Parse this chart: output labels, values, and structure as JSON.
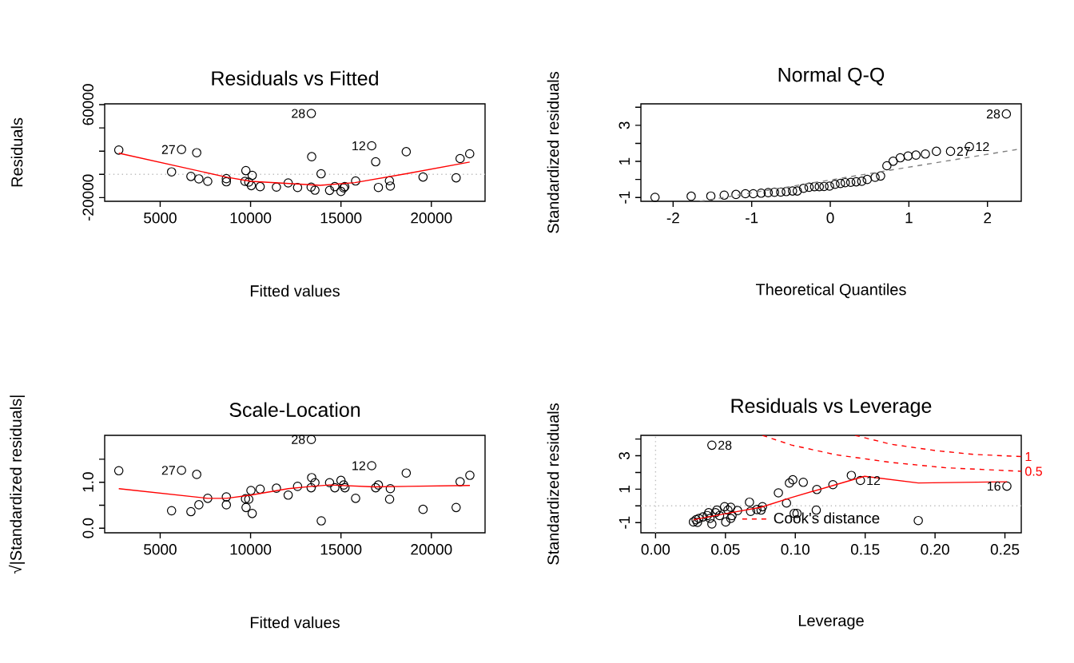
{
  "chart_data": [
    {
      "type": "scatter",
      "title": "Residuals vs Fitted",
      "xlabel": "Fitted values",
      "ylabel": "Residuals",
      "xlim": [
        1930,
        22970
      ],
      "ylim": [
        -23200,
        60700
      ],
      "xticks": [
        5000,
        10000,
        15000,
        20000
      ],
      "yticks": [
        -20000,
        {
          "value": 0,
          "label": null
        },
        {
          "value": 20000,
          "label": null
        },
        {
          "value": 40000,
          "label": null
        },
        60000
      ],
      "series": [
        {
          "color": "#000000",
          "marker": "circle",
          "x": [
            2710,
            6180,
            7020,
            5630,
            6700,
            7140,
            7630,
            8660,
            8660,
            9740,
            10090,
            9690,
            9900,
            10040,
            10530,
            11430,
            12080,
            12600,
            13380,
            13350,
            13560,
            13900,
            14370,
            14660,
            15000,
            15150,
            15210,
            15810,
            16700,
            16920,
            17070,
            17680,
            17730,
            18610,
            19540,
            21370,
            21590,
            22120,
            13360
          ],
          "values": [
            20900,
            21400,
            18600,
            2100,
            -1800,
            -3900,
            -6000,
            -3700,
            -6400,
            3200,
            -900,
            -6000,
            -6700,
            -9700,
            -10600,
            -11000,
            -7400,
            -11300,
            15200,
            -11000,
            -13600,
            500,
            -13800,
            -10600,
            -14700,
            -11700,
            -10600,
            -5700,
            24600,
            10800,
            -11300,
            -5500,
            -10100,
            19500,
            -2300,
            -3000,
            13600,
            17700,
            52400
          ]
        },
        {
          "type": "line",
          "color": "#ff0000",
          "x": [
            2710,
            8700,
            10020,
            13850,
            15770,
            18600,
            22120
          ],
          "values": [
            18200,
            -2500,
            -6000,
            -9400,
            -7100,
            500,
            10600
          ]
        }
      ],
      "ref_lines": [
        {
          "axis": "y",
          "value": 0,
          "color": "#bebebe",
          "line_style": "dotted"
        }
      ],
      "annotations": [
        {
          "text": "28",
          "x": 13360,
          "y": 52400
        },
        {
          "text": "27",
          "x": 6180,
          "y": 21400
        },
        {
          "text": "12",
          "x": 16700,
          "y": 24600
        }
      ]
    },
    {
      "type": "scatter",
      "title": "Normal Q-Q",
      "xlabel": "Theoretical Quantiles",
      "ylabel": "Standardized residuals",
      "xlim": [
        -2.41,
        2.43
      ],
      "ylim": [
        -1.21,
        4.19
      ],
      "xticks": [
        -2,
        -1,
        0,
        1,
        2
      ],
      "yticks": [
        -1,
        {
          "value": 0,
          "label": null
        },
        1,
        {
          "value": 2,
          "label": null
        },
        3,
        {
          "value": 4,
          "label": null
        }
      ],
      "series": [
        {
          "color": "#000000",
          "marker": "circle",
          "x": [
            -2.23,
            -1.77,
            -1.52,
            -1.35,
            -1.2,
            -1.08,
            -0.98,
            -0.88,
            -0.79,
            -0.71,
            -0.63,
            -0.56,
            -0.48,
            -0.42,
            -0.34,
            -0.27,
            -0.2,
            -0.14,
            -0.08,
            -0.01,
            0.06,
            0.13,
            0.19,
            0.26,
            0.33,
            0.4,
            0.47,
            0.57,
            0.64,
            0.72,
            0.8,
            0.89,
            0.99,
            1.09,
            1.21,
            1.35,
            1.53,
            1.77,
            2.24
          ],
          "values": [
            -0.99,
            -0.93,
            -0.92,
            -0.87,
            -0.83,
            -0.79,
            -0.79,
            -0.76,
            -0.73,
            -0.71,
            -0.7,
            -0.67,
            -0.64,
            -0.64,
            -0.49,
            -0.43,
            -0.4,
            -0.4,
            -0.39,
            -0.37,
            -0.27,
            -0.22,
            -0.18,
            -0.16,
            -0.13,
            -0.1,
            0.0,
            0.12,
            0.19,
            0.76,
            1.01,
            1.2,
            1.3,
            1.35,
            1.41,
            1.56,
            1.56,
            1.82,
            3.63
          ]
        },
        {
          "type": "line",
          "color": "#808080",
          "line_style": "dashed",
          "x": [
            -1.66,
            2.43
          ],
          "values": [
            -1.21,
            1.7
          ]
        }
      ],
      "annotations": [
        {
          "text": "28",
          "x": 2.24,
          "y": 3.63
        },
        {
          "text": "27",
          "x": 1.53,
          "y": 1.56
        },
        {
          "text": "12",
          "x": 1.77,
          "y": 1.82
        }
      ]
    },
    {
      "type": "scatter",
      "title": "Scale-Location",
      "xlabel": "Fitted values",
      "ylabel": "√|Standardized residuals|",
      "xlim": [
        1930,
        22970
      ],
      "ylim": [
        -0.1,
        2.02
      ],
      "xticks": [
        5000,
        10000,
        15000,
        20000
      ],
      "yticks": [
        {
          "value": 0,
          "label": "0.0"
        },
        {
          "value": 0.5,
          "label": null
        },
        {
          "value": 1,
          "label": "1.0"
        },
        {
          "value": 1.5,
          "label": null
        }
      ],
      "series": [
        {
          "color": "#000000",
          "marker": "circle",
          "x": [
            2710,
            6180,
            7020,
            5630,
            6700,
            7140,
            7630,
            8660,
            8660,
            9720,
            9900,
            9750,
            10090,
            10020,
            10530,
            11430,
            12080,
            12600,
            13380,
            13350,
            13560,
            13910,
            14370,
            14660,
            15000,
            15150,
            15220,
            15810,
            16700,
            16920,
            17070,
            17690,
            17730,
            18610,
            19540,
            21370,
            21590,
            22130,
            13360
          ],
          "values": [
            1.25,
            1.26,
            1.17,
            0.38,
            0.36,
            0.51,
            0.65,
            0.68,
            0.51,
            0.64,
            0.63,
            0.45,
            0.32,
            0.82,
            0.85,
            0.87,
            0.72,
            0.91,
            1.1,
            0.88,
            0.99,
            0.16,
            0.99,
            0.88,
            1.04,
            0.94,
            0.88,
            0.65,
            1.36,
            0.88,
            0.94,
            0.63,
            0.86,
            1.2,
            0.41,
            0.45,
            1.01,
            1.15,
            1.93
          ]
        },
        {
          "type": "line",
          "color": "#ff0000",
          "x": [
            2710,
            7630,
            8660,
            10020,
            12080,
            13380,
            14370,
            16840,
            22130
          ],
          "values": [
            0.86,
            0.65,
            0.65,
            0.72,
            0.86,
            0.91,
            0.94,
            0.9,
            0.93
          ]
        }
      ],
      "annotations": [
        {
          "text": "28",
          "x": 13360,
          "y": 1.93
        },
        {
          "text": "27",
          "x": 6180,
          "y": 1.26
        },
        {
          "text": "12",
          "x": 16700,
          "y": 1.36
        }
      ]
    },
    {
      "type": "scatter",
      "title": "Residuals vs Leverage",
      "xlabel": "Leverage",
      "ylabel": "Standardized residuals",
      "legend": "bottom left",
      "xlim": [
        -0.0105,
        0.2617
      ],
      "ylim": [
        -1.61,
        4.22
      ],
      "xticks": [
        {
          "value": 0,
          "label": "0.00"
        },
        {
          "value": 0.05,
          "label": "0.05"
        },
        {
          "value": 0.1,
          "label": "0.10"
        },
        {
          "value": 0.15,
          "label": "0.15"
        },
        {
          "value": 0.2,
          "label": "0.20"
        },
        {
          "value": 0.25,
          "label": "0.25"
        }
      ],
      "yticks": [
        -1,
        {
          "value": 0,
          "label": null
        },
        1,
        {
          "value": 2,
          "label": null
        },
        3,
        {
          "value": 4,
          "label": null
        }
      ],
      "series": [
        {
          "color": "#000000",
          "marker": "circle",
          "x": [
            0.0403,
            0.0271,
            0.029,
            0.031,
            0.034,
            0.037,
            0.038,
            0.0403,
            0.0439,
            0.0458,
            0.0494,
            0.0502,
            0.0538,
            0.0538,
            0.0587,
            0.0672,
            0.068,
            0.0755,
            0.0765,
            0.0879,
            0.0937,
            0.0958,
            0.0982,
            0.0992,
            0.1012,
            0.1057,
            0.115,
            0.1154,
            0.1269,
            0.1401,
            0.1466,
            0.188,
            0.2514,
            0.03,
            0.0389,
            0.0429,
            0.0518,
            0.0547,
            0.0725
          ],
          "values": [
            3.63,
            -0.96,
            -0.83,
            -0.75,
            -0.66,
            -0.58,
            -0.41,
            -1.08,
            -0.25,
            -0.58,
            -0.05,
            -0.96,
            -0.08,
            -0.75,
            -0.28,
            0.22,
            -0.33,
            -0.25,
            -0.05,
            0.78,
            0.17,
            1.37,
            1.56,
            -0.45,
            -0.45,
            1.41,
            -0.25,
            0.98,
            1.27,
            1.82,
            1.52,
            -0.88,
            1.18,
            -0.99,
            -0.75,
            -0.41,
            -0.25,
            -0.58,
            -0.22
          ]
        },
        {
          "type": "line",
          "color": "#ff0000",
          "x": [
            0.0271,
            0.0538,
            0.0755,
            0.0972,
            0.1496,
            0.188,
            0.2514
          ],
          "values": [
            -0.83,
            -0.41,
            -0.08,
            0.5,
            1.77,
            1.37,
            1.44
          ]
        },
        {
          "type": "line",
          "name": "Cook's distance",
          "color": "#ff0000",
          "line_style": "dashed",
          "x": [
            0.0765,
            0.0972,
            0.1289,
            0.1684,
            0.2079,
            0.2617
          ],
          "values": [
            4.22,
            3.64,
            3.06,
            2.6,
            2.28,
            2.07
          ]
        },
        {
          "type": "line",
          "color": "#ff0000",
          "line_style": "dashed",
          "x": [
            0.1427,
            0.1684,
            0.2,
            0.2277,
            0.2617
          ],
          "values": [
            4.22,
            3.69,
            3.31,
            3.08,
            2.95
          ]
        }
      ],
      "ref_lines": [
        {
          "axis": "x",
          "value": 0,
          "color": "#bebebe",
          "line_style": "dotted"
        },
        {
          "axis": "y",
          "value": 0,
          "color": "#bebebe",
          "line_style": "dotted"
        }
      ],
      "annotations": [
        {
          "text": "28",
          "x": 0.0403,
          "y": 3.63
        },
        {
          "text": "12",
          "x": 0.1466,
          "y": 1.52
        },
        {
          "text": "16",
          "x": 0.2514,
          "y": 1.18
        },
        {
          "text": "0.5",
          "x": 0.2617,
          "y": 2.07
        },
        {
          "text": "1",
          "x": 0.2617,
          "y": 2.95
        }
      ]
    }
  ]
}
